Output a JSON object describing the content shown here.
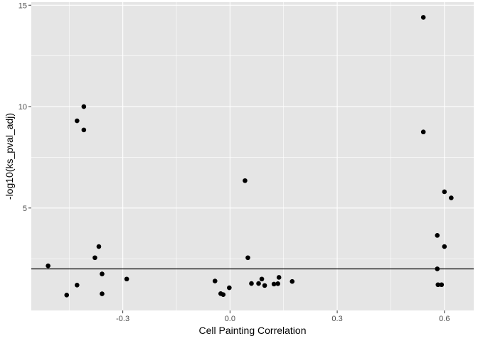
{
  "chart_data": {
    "type": "scatter",
    "title": "",
    "xlabel": "Cell Painting Correlation",
    "ylabel": "-log10(ks_pval_adj)",
    "xlim": [
      -0.556,
      0.682
    ],
    "ylim": [
      -0.05,
      15.15
    ],
    "x_major_ticks": [
      -0.3,
      0.0,
      0.3,
      0.6
    ],
    "x_tick_labels": [
      "-0.3",
      "0.0",
      "0.3",
      "0.6"
    ],
    "x_minor_ticks": [
      -0.45,
      -0.15,
      0.15,
      0.45
    ],
    "y_major_ticks": [
      5,
      10,
      15
    ],
    "y_tick_labels": [
      "5",
      "10",
      "15"
    ],
    "y_minor_ticks": [
      2.5,
      7.5,
      12.5
    ],
    "grid": true,
    "legend": "none",
    "hline_y": 2.0,
    "colors": {
      "panel_background": "#e5e5e5",
      "gridline": "#ffffff",
      "point": "#000000",
      "reference_line": "#000000"
    },
    "points": [
      {
        "x": -0.509,
        "y": 2.15
      },
      {
        "x": -0.457,
        "y": 0.71
      },
      {
        "x": -0.428,
        "y": 1.2
      },
      {
        "x": -0.428,
        "y": 9.3
      },
      {
        "x": -0.409,
        "y": 10.0
      },
      {
        "x": -0.409,
        "y": 8.85
      },
      {
        "x": -0.378,
        "y": 2.55
      },
      {
        "x": -0.367,
        "y": 3.1
      },
      {
        "x": -0.358,
        "y": 1.75
      },
      {
        "x": -0.358,
        "y": 0.77
      },
      {
        "x": -0.289,
        "y": 1.5
      },
      {
        "x": -0.042,
        "y": 1.4
      },
      {
        "x": -0.026,
        "y": 0.78
      },
      {
        "x": -0.019,
        "y": 0.73
      },
      {
        "x": -0.002,
        "y": 1.07
      },
      {
        "x": 0.042,
        "y": 6.35
      },
      {
        "x": 0.05,
        "y": 2.55
      },
      {
        "x": 0.06,
        "y": 1.28
      },
      {
        "x": 0.08,
        "y": 1.28
      },
      {
        "x": 0.089,
        "y": 1.5
      },
      {
        "x": 0.097,
        "y": 1.18
      },
      {
        "x": 0.123,
        "y": 1.25
      },
      {
        "x": 0.134,
        "y": 1.27
      },
      {
        "x": 0.137,
        "y": 1.58
      },
      {
        "x": 0.174,
        "y": 1.38
      },
      {
        "x": 0.541,
        "y": 14.4
      },
      {
        "x": 0.541,
        "y": 8.75
      },
      {
        "x": 0.58,
        "y": 3.65
      },
      {
        "x": 0.58,
        "y": 2.0
      },
      {
        "x": 0.582,
        "y": 1.22
      },
      {
        "x": 0.592,
        "y": 1.22
      },
      {
        "x": 0.6,
        "y": 5.8
      },
      {
        "x": 0.6,
        "y": 3.1
      },
      {
        "x": 0.619,
        "y": 5.5
      }
    ]
  }
}
